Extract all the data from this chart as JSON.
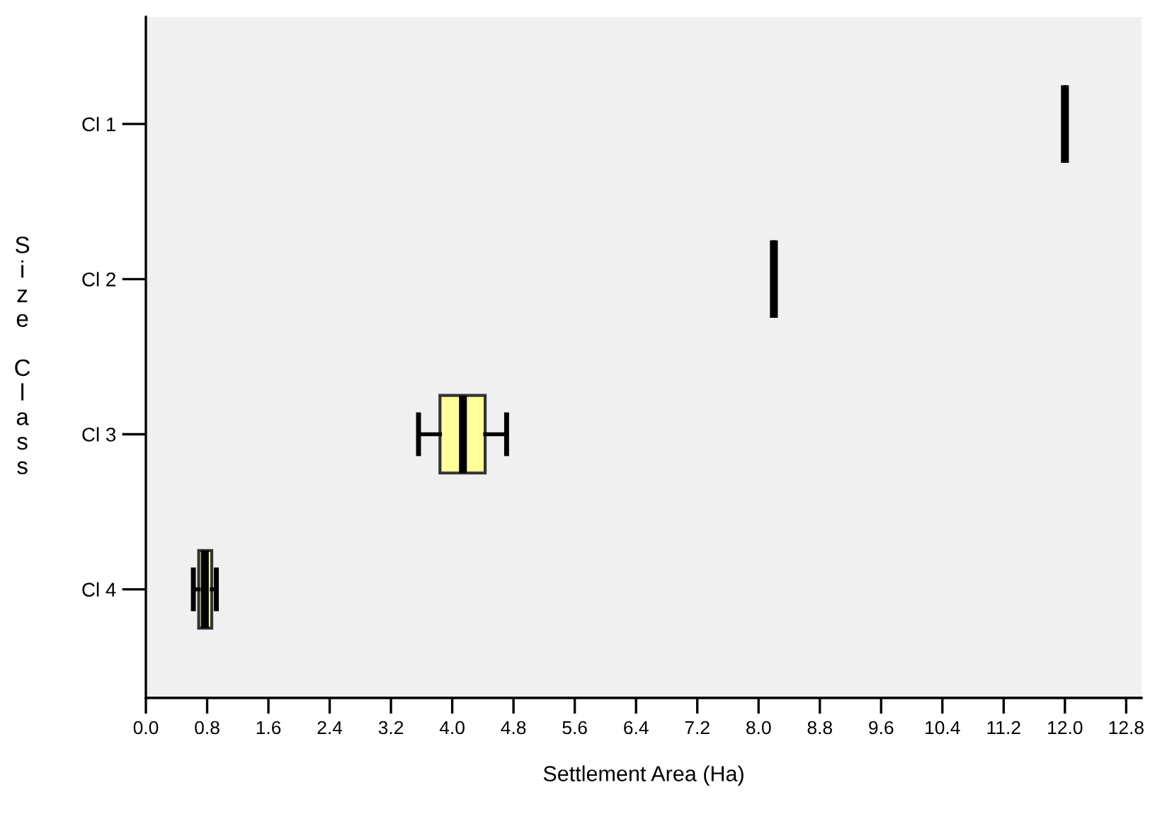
{
  "chart_data": {
    "type": "box",
    "orientation": "horizontal",
    "xlabel": "Settlement Area (Ha)",
    "ylabel": "Size Class",
    "categories": [
      "Cl 1",
      "Cl 2",
      "Cl 3",
      "Cl 4"
    ],
    "series": [
      {
        "colors": [
          "#000000",
          "#000000",
          "#ffff99",
          "#ffff99"
        ],
        "boxes": [
          {
            "low": 12.0,
            "q1": 12.0,
            "median": 12.0,
            "q3": 12.0,
            "high": 12.0
          },
          {
            "low": 8.2,
            "q1": 8.2,
            "median": 8.2,
            "q3": 8.2,
            "high": 8.2
          },
          {
            "low": 3.56,
            "q1": 3.84,
            "median": 4.14,
            "q3": 4.43,
            "high": 4.71
          },
          {
            "low": 0.62,
            "q1": 0.69,
            "median": 0.77,
            "q3": 0.86,
            "high": 0.92
          }
        ]
      }
    ],
    "xlim": [
      0,
      13.0
    ],
    "xticks": [
      {
        "value": 0,
        "label": "0.0"
      },
      {
        "value": 0.8,
        "label": "0.8"
      },
      {
        "value": 1.6,
        "label": "1.6"
      },
      {
        "value": 2.4,
        "label": "2.4"
      },
      {
        "value": 3.2,
        "label": "3.2"
      },
      {
        "value": 4.0,
        "label": "4.0"
      },
      {
        "value": 4.8,
        "label": "4.8"
      },
      {
        "value": 5.6,
        "label": "5.6"
      },
      {
        "value": 6.4,
        "label": "6.4"
      },
      {
        "value": 7.2,
        "label": "7.2"
      },
      {
        "value": 8.0,
        "label": "8.0"
      },
      {
        "value": 8.8,
        "label": "8.8"
      },
      {
        "value": 9.6,
        "label": "9.6"
      },
      {
        "value": 10.4,
        "label": "10.4"
      },
      {
        "value": 11.2,
        "label": "11.2"
      },
      {
        "value": 12.0,
        "label": "12.0"
      },
      {
        "value": 12.8,
        "label": "12.8"
      }
    ],
    "grid": false
  }
}
